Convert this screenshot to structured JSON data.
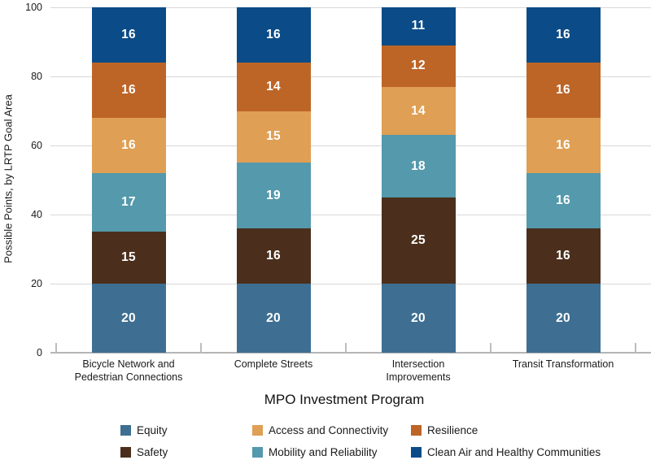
{
  "chart_data": {
    "type": "bar",
    "stacked": true,
    "title": "",
    "xlabel": "MPO Investment Program",
    "ylabel": "Possible Points, by LRTP Goal Area",
    "ylim": [
      0,
      100
    ],
    "yticks": [
      0,
      20,
      40,
      60,
      80,
      100
    ],
    "grid": "horizontal",
    "categories": [
      [
        "Bicycle Network and",
        "Pedestrian Connections"
      ],
      [
        "Complete Streets"
      ],
      [
        "Intersection",
        "Improvements"
      ],
      [
        "Transit Transformation"
      ]
    ],
    "series": [
      {
        "name": "Equity",
        "color": "#3E6F92",
        "values": [
          20,
          20,
          20,
          20
        ]
      },
      {
        "name": "Safety",
        "color": "#4B2F1C",
        "values": [
          15,
          16,
          25,
          16
        ]
      },
      {
        "name": "Mobility and Reliability",
        "color": "#5499AC",
        "values": [
          17,
          19,
          18,
          16
        ]
      },
      {
        "name": "Access and Connectivity",
        "color": "#DF9F54",
        "values": [
          16,
          15,
          14,
          16
        ]
      },
      {
        "name": "Resilience",
        "color": "#BD6527",
        "values": [
          16,
          14,
          12,
          16
        ]
      },
      {
        "name": "Clean Air and Healthy Communities",
        "color": "#0B4B87",
        "values": [
          16,
          16,
          11,
          16
        ]
      }
    ],
    "bar_value_labels_shown": true,
    "legend": {
      "position": "bottom",
      "entries_row_major": [
        "Equity",
        "Access and Connectivity",
        "Resilience",
        "Safety",
        "Mobility and Reliability",
        "Clean Air and Healthy Communities"
      ]
    }
  }
}
